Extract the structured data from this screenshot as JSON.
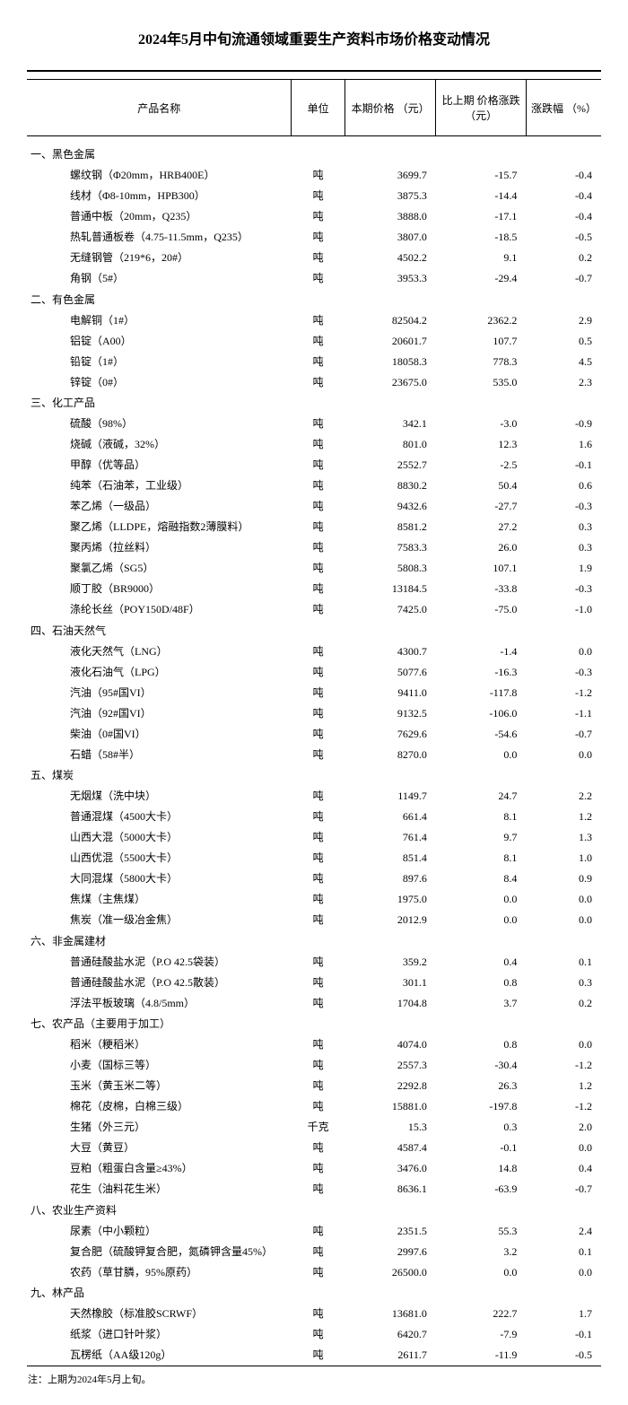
{
  "title": "2024年5月中旬流通领域重要生产资料市场价格变动情况",
  "columns": {
    "name": "产品名称",
    "unit": "单位",
    "price": "本期价格\n（元）",
    "change": "比上期\n价格涨跌\n（元）",
    "pct": "涨跌幅\n（%）"
  },
  "footnote": "注：上期为2024年5月上旬。",
  "sections": [
    {
      "title": "一、黑色金属",
      "rows": [
        {
          "name": "螺纹钢（Φ20mm，HRB400E）",
          "unit": "吨",
          "price": "3699.7",
          "change": "-15.7",
          "pct": "-0.4"
        },
        {
          "name": "线材（Φ8-10mm，HPB300）",
          "unit": "吨",
          "price": "3875.3",
          "change": "-14.4",
          "pct": "-0.4"
        },
        {
          "name": "普通中板（20mm，Q235）",
          "unit": "吨",
          "price": "3888.0",
          "change": "-17.1",
          "pct": "-0.4"
        },
        {
          "name": "热轧普通板卷（4.75-11.5mm，Q235）",
          "unit": "吨",
          "price": "3807.0",
          "change": "-18.5",
          "pct": "-0.5"
        },
        {
          "name": "无缝钢管（219*6，20#）",
          "unit": "吨",
          "price": "4502.2",
          "change": "9.1",
          "pct": "0.2"
        },
        {
          "name": "角钢（5#）",
          "unit": "吨",
          "price": "3953.3",
          "change": "-29.4",
          "pct": "-0.7"
        }
      ]
    },
    {
      "title": "二、有色金属",
      "rows": [
        {
          "name": "电解铜（1#）",
          "unit": "吨",
          "price": "82504.2",
          "change": "2362.2",
          "pct": "2.9"
        },
        {
          "name": "铝锭（A00）",
          "unit": "吨",
          "price": "20601.7",
          "change": "107.7",
          "pct": "0.5"
        },
        {
          "name": "铅锭（1#）",
          "unit": "吨",
          "price": "18058.3",
          "change": "778.3",
          "pct": "4.5"
        },
        {
          "name": "锌锭（0#）",
          "unit": "吨",
          "price": "23675.0",
          "change": "535.0",
          "pct": "2.3"
        }
      ]
    },
    {
      "title": "三、化工产品",
      "rows": [
        {
          "name": "硫酸（98%）",
          "unit": "吨",
          "price": "342.1",
          "change": "-3.0",
          "pct": "-0.9"
        },
        {
          "name": "烧碱（液碱，32%）",
          "unit": "吨",
          "price": "801.0",
          "change": "12.3",
          "pct": "1.6"
        },
        {
          "name": "甲醇（优等品）",
          "unit": "吨",
          "price": "2552.7",
          "change": "-2.5",
          "pct": "-0.1"
        },
        {
          "name": "纯苯（石油苯，工业级）",
          "unit": "吨",
          "price": "8830.2",
          "change": "50.4",
          "pct": "0.6"
        },
        {
          "name": "苯乙烯（一级品）",
          "unit": "吨",
          "price": "9432.6",
          "change": "-27.7",
          "pct": "-0.3"
        },
        {
          "name": "聚乙烯（LLDPE，熔融指数2薄膜料）",
          "unit": "吨",
          "price": "8581.2",
          "change": "27.2",
          "pct": "0.3"
        },
        {
          "name": "聚丙烯（拉丝料）",
          "unit": "吨",
          "price": "7583.3",
          "change": "26.0",
          "pct": "0.3"
        },
        {
          "name": "聚氯乙烯（SG5）",
          "unit": "吨",
          "price": "5808.3",
          "change": "107.1",
          "pct": "1.9"
        },
        {
          "name": "顺丁胶（BR9000）",
          "unit": "吨",
          "price": "13184.5",
          "change": "-33.8",
          "pct": "-0.3"
        },
        {
          "name": "涤纶长丝（POY150D/48F）",
          "unit": "吨",
          "price": "7425.0",
          "change": "-75.0",
          "pct": "-1.0"
        }
      ]
    },
    {
      "title": "四、石油天然气",
      "rows": [
        {
          "name": "液化天然气（LNG）",
          "unit": "吨",
          "price": "4300.7",
          "change": "-1.4",
          "pct": "0.0"
        },
        {
          "name": "液化石油气（LPG）",
          "unit": "吨",
          "price": "5077.6",
          "change": "-16.3",
          "pct": "-0.3"
        },
        {
          "name": "汽油（95#国VI）",
          "unit": "吨",
          "price": "9411.0",
          "change": "-117.8",
          "pct": "-1.2"
        },
        {
          "name": "汽油（92#国VI）",
          "unit": "吨",
          "price": "9132.5",
          "change": "-106.0",
          "pct": "-1.1"
        },
        {
          "name": "柴油（0#国VI）",
          "unit": "吨",
          "price": "7629.6",
          "change": "-54.6",
          "pct": "-0.7"
        },
        {
          "name": "石蜡（58#半）",
          "unit": "吨",
          "price": "8270.0",
          "change": "0.0",
          "pct": "0.0"
        }
      ]
    },
    {
      "title": "五、煤炭",
      "rows": [
        {
          "name": "无烟煤（洗中块）",
          "unit": "吨",
          "price": "1149.7",
          "change": "24.7",
          "pct": "2.2"
        },
        {
          "name": "普通混煤（4500大卡）",
          "unit": "吨",
          "price": "661.4",
          "change": "8.1",
          "pct": "1.2"
        },
        {
          "name": "山西大混（5000大卡）",
          "unit": "吨",
          "price": "761.4",
          "change": "9.7",
          "pct": "1.3"
        },
        {
          "name": "山西优混（5500大卡）",
          "unit": "吨",
          "price": "851.4",
          "change": "8.1",
          "pct": "1.0"
        },
        {
          "name": "大同混煤（5800大卡）",
          "unit": "吨",
          "price": "897.6",
          "change": "8.4",
          "pct": "0.9"
        },
        {
          "name": "焦煤（主焦煤）",
          "unit": "吨",
          "price": "1975.0",
          "change": "0.0",
          "pct": "0.0"
        },
        {
          "name": "焦炭（准一级冶金焦）",
          "unit": "吨",
          "price": "2012.9",
          "change": "0.0",
          "pct": "0.0"
        }
      ]
    },
    {
      "title": "六、非金属建材",
      "rows": [
        {
          "name": "普通硅酸盐水泥（P.O 42.5袋装）",
          "unit": "吨",
          "price": "359.2",
          "change": "0.4",
          "pct": "0.1"
        },
        {
          "name": "普通硅酸盐水泥（P.O 42.5散装）",
          "unit": "吨",
          "price": "301.1",
          "change": "0.8",
          "pct": "0.3"
        },
        {
          "name": "浮法平板玻璃（4.8/5mm）",
          "unit": "吨",
          "price": "1704.8",
          "change": "3.7",
          "pct": "0.2"
        }
      ]
    },
    {
      "title": "七、农产品（主要用于加工）",
      "rows": [
        {
          "name": "稻米（粳稻米）",
          "unit": "吨",
          "price": "4074.0",
          "change": "0.8",
          "pct": "0.0"
        },
        {
          "name": "小麦（国标三等）",
          "unit": "吨",
          "price": "2557.3",
          "change": "-30.4",
          "pct": "-1.2"
        },
        {
          "name": "玉米（黄玉米二等）",
          "unit": "吨",
          "price": "2292.8",
          "change": "26.3",
          "pct": "1.2"
        },
        {
          "name": "棉花（皮棉，白棉三级）",
          "unit": "吨",
          "price": "15881.0",
          "change": "-197.8",
          "pct": "-1.2"
        },
        {
          "name": "生猪（外三元）",
          "unit": "千克",
          "price": "15.3",
          "change": "0.3",
          "pct": "2.0"
        },
        {
          "name": "大豆（黄豆）",
          "unit": "吨",
          "price": "4587.4",
          "change": "-0.1",
          "pct": "0.0"
        },
        {
          "name": "豆粕（粗蛋白含量≥43%）",
          "unit": "吨",
          "price": "3476.0",
          "change": "14.8",
          "pct": "0.4"
        },
        {
          "name": "花生（油料花生米）",
          "unit": "吨",
          "price": "8636.1",
          "change": "-63.9",
          "pct": "-0.7"
        }
      ]
    },
    {
      "title": "八、农业生产资料",
      "rows": [
        {
          "name": "尿素（中小颗粒）",
          "unit": "吨",
          "price": "2351.5",
          "change": "55.3",
          "pct": "2.4"
        },
        {
          "name": "复合肥（硫酸钾复合肥，氮磷钾含量45%）",
          "unit": "吨",
          "price": "2997.6",
          "change": "3.2",
          "pct": "0.1"
        },
        {
          "name": "农药（草甘膦，95%原药）",
          "unit": "吨",
          "price": "26500.0",
          "change": "0.0",
          "pct": "0.0"
        }
      ]
    },
    {
      "title": "九、林产品",
      "rows": [
        {
          "name": "天然橡胶（标准胶SCRWF）",
          "unit": "吨",
          "price": "13681.0",
          "change": "222.7",
          "pct": "1.7"
        },
        {
          "name": "纸浆（进口针叶浆）",
          "unit": "吨",
          "price": "6420.7",
          "change": "-7.9",
          "pct": "-0.1"
        },
        {
          "name": "瓦楞纸（AA级120g）",
          "unit": "吨",
          "price": "2611.7",
          "change": "-11.9",
          "pct": "-0.5"
        }
      ]
    }
  ]
}
